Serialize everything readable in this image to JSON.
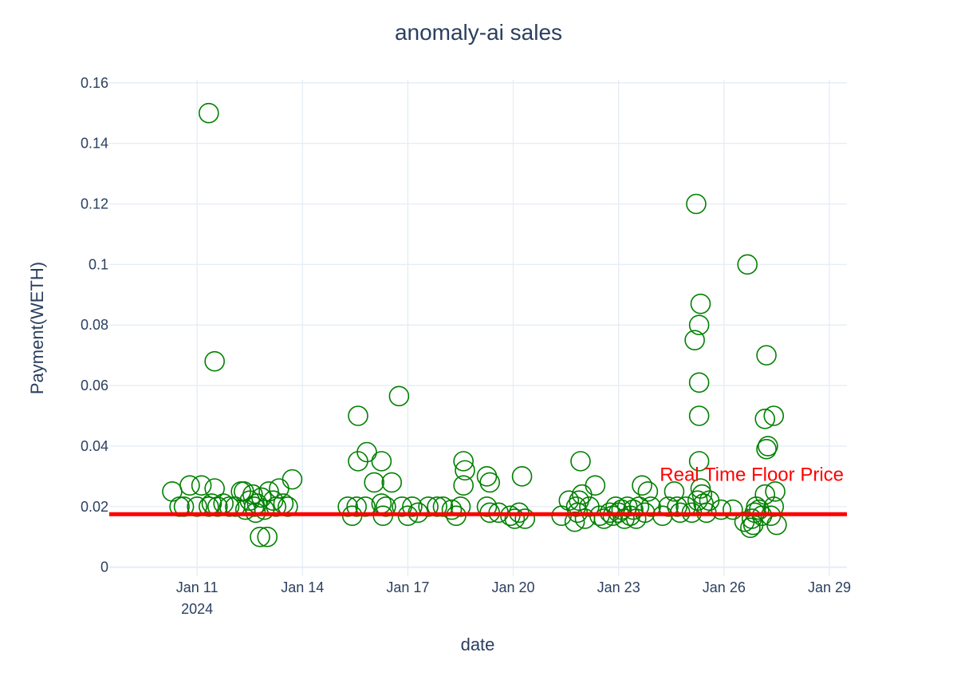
{
  "chart_data": {
    "type": "scatter",
    "title": "anomaly-ai sales",
    "xlabel": "date",
    "ylabel": "Payment(WETH)",
    "grid": true,
    "x_range": [
      "2024-01-08T12:00",
      "2024-01-29T12:00"
    ],
    "ylim": [
      -0.003,
      0.161
    ],
    "x_ticks": [
      {
        "date": "2024-01-11",
        "label": "Jan 11",
        "sublabel": "2024"
      },
      {
        "date": "2024-01-14",
        "label": "Jan 14"
      },
      {
        "date": "2024-01-17",
        "label": "Jan 17"
      },
      {
        "date": "2024-01-20",
        "label": "Jan 20"
      },
      {
        "date": "2024-01-23",
        "label": "Jan 23"
      },
      {
        "date": "2024-01-26",
        "label": "Jan 26"
      },
      {
        "date": "2024-01-29",
        "label": "Jan 29"
      }
    ],
    "y_ticks": [
      {
        "value": 0,
        "label": "0"
      },
      {
        "value": 0.02,
        "label": "0.02"
      },
      {
        "value": 0.04,
        "label": "0.04"
      },
      {
        "value": 0.06,
        "label": "0.06"
      },
      {
        "value": 0.08,
        "label": "0.08"
      },
      {
        "value": 0.1,
        "label": "0.1"
      },
      {
        "value": 0.12,
        "label": "0.12"
      },
      {
        "value": 0.14,
        "label": "0.14"
      },
      {
        "value": 0.16,
        "label": "0.16"
      }
    ],
    "marker_color": "#008000",
    "floor_price": {
      "value": 0.0175,
      "label": "Real Time Floor Price",
      "color": "#ff0000"
    },
    "series": [
      {
        "marker": "open-circle",
        "points": [
          {
            "x": "2024-01-10T07:00",
            "y": 0.025
          },
          {
            "x": "2024-01-10T12:00",
            "y": 0.02
          },
          {
            "x": "2024-01-10T15:00",
            "y": 0.02
          },
          {
            "x": "2024-01-10T19:00",
            "y": 0.027
          },
          {
            "x": "2024-01-11T00:00",
            "y": 0.02
          },
          {
            "x": "2024-01-11T03:00",
            "y": 0.027
          },
          {
            "x": "2024-01-11T08:00",
            "y": 0.02
          },
          {
            "x": "2024-01-11T08:00",
            "y": 0.15
          },
          {
            "x": "2024-01-11T10:00",
            "y": 0.021
          },
          {
            "x": "2024-01-11T12:00",
            "y": 0.068
          },
          {
            "x": "2024-01-11T12:00",
            "y": 0.026
          },
          {
            "x": "2024-01-11T14:00",
            "y": 0.02
          },
          {
            "x": "2024-01-11T18:00",
            "y": 0.021
          },
          {
            "x": "2024-01-11T22:00",
            "y": 0.02
          },
          {
            "x": "2024-01-12T02:00",
            "y": 0.02
          },
          {
            "x": "2024-01-12T06:00",
            "y": 0.025
          },
          {
            "x": "2024-01-12T08:00",
            "y": 0.025
          },
          {
            "x": "2024-01-12T09:00",
            "y": 0.019
          },
          {
            "x": "2024-01-12T12:00",
            "y": 0.022
          },
          {
            "x": "2024-01-12T14:00",
            "y": 0.024
          },
          {
            "x": "2024-01-12T15:00",
            "y": 0.02
          },
          {
            "x": "2024-01-12T16:00",
            "y": 0.018
          },
          {
            "x": "2024-01-12T17:00",
            "y": 0.021
          },
          {
            "x": "2024-01-12T19:00",
            "y": 0.01
          },
          {
            "x": "2024-01-12T20:00",
            "y": 0.023
          },
          {
            "x": "2024-01-12T22:00",
            "y": 0.019
          },
          {
            "x": "2024-01-13T00:00",
            "y": 0.01
          },
          {
            "x": "2024-01-13T01:00",
            "y": 0.025
          },
          {
            "x": "2024-01-13T04:00",
            "y": 0.022
          },
          {
            "x": "2024-01-13T06:00",
            "y": 0.02
          },
          {
            "x": "2024-01-13T08:00",
            "y": 0.026
          },
          {
            "x": "2024-01-13T11:00",
            "y": 0.021
          },
          {
            "x": "2024-01-13T14:00",
            "y": 0.02
          },
          {
            "x": "2024-01-13T17:00",
            "y": 0.029
          },
          {
            "x": "2024-01-15T07:00",
            "y": 0.02
          },
          {
            "x": "2024-01-15T10:00",
            "y": 0.017
          },
          {
            "x": "2024-01-15T13:00",
            "y": 0.02
          },
          {
            "x": "2024-01-15T14:00",
            "y": 0.035
          },
          {
            "x": "2024-01-15T14:00",
            "y": 0.05
          },
          {
            "x": "2024-01-15T19:00",
            "y": 0.02
          },
          {
            "x": "2024-01-15T20:00",
            "y": 0.038
          },
          {
            "x": "2024-01-16T01:00",
            "y": 0.028
          },
          {
            "x": "2024-01-16T06:00",
            "y": 0.021
          },
          {
            "x": "2024-01-16T06:00",
            "y": 0.035
          },
          {
            "x": "2024-01-16T07:00",
            "y": 0.017
          },
          {
            "x": "2024-01-16T09:00",
            "y": 0.02
          },
          {
            "x": "2024-01-16T13:00",
            "y": 0.028
          },
          {
            "x": "2024-01-16T18:00",
            "y": 0.0565
          },
          {
            "x": "2024-01-16T20:00",
            "y": 0.02
          },
          {
            "x": "2024-01-17T00:00",
            "y": 0.017
          },
          {
            "x": "2024-01-17T03:00",
            "y": 0.02
          },
          {
            "x": "2024-01-17T07:00",
            "y": 0.018
          },
          {
            "x": "2024-01-17T14:00",
            "y": 0.02
          },
          {
            "x": "2024-01-17T20:00",
            "y": 0.02
          },
          {
            "x": "2024-01-18T00:00",
            "y": 0.02
          },
          {
            "x": "2024-01-18T06:00",
            "y": 0.019
          },
          {
            "x": "2024-01-18T09:00",
            "y": 0.017
          },
          {
            "x": "2024-01-18T12:00",
            "y": 0.02
          },
          {
            "x": "2024-01-18T14:00",
            "y": 0.027
          },
          {
            "x": "2024-01-18T14:00",
            "y": 0.035
          },
          {
            "x": "2024-01-18T15:00",
            "y": 0.032
          },
          {
            "x": "2024-01-19T06:00",
            "y": 0.02
          },
          {
            "x": "2024-01-19T06:00",
            "y": 0.03
          },
          {
            "x": "2024-01-19T08:00",
            "y": 0.028
          },
          {
            "x": "2024-01-19T08:00",
            "y": 0.018
          },
          {
            "x": "2024-01-19T14:00",
            "y": 0.018
          },
          {
            "x": "2024-01-19T22:00",
            "y": 0.017
          },
          {
            "x": "2024-01-20T01:00",
            "y": 0.016
          },
          {
            "x": "2024-01-20T04:00",
            "y": 0.018
          },
          {
            "x": "2024-01-20T06:00",
            "y": 0.03
          },
          {
            "x": "2024-01-20T08:00",
            "y": 0.016
          },
          {
            "x": "2024-01-21T09:00",
            "y": 0.017
          },
          {
            "x": "2024-01-21T14:00",
            "y": 0.022
          },
          {
            "x": "2024-01-21T18:00",
            "y": 0.015
          },
          {
            "x": "2024-01-21T19:00",
            "y": 0.02
          },
          {
            "x": "2024-01-21T20:00",
            "y": 0.018
          },
          {
            "x": "2024-01-21T21:00",
            "y": 0.022
          },
          {
            "x": "2024-01-21T22:00",
            "y": 0.035
          },
          {
            "x": "2024-01-21T23:00",
            "y": 0.024
          },
          {
            "x": "2024-01-22T01:00",
            "y": 0.016
          },
          {
            "x": "2024-01-22T04:00",
            "y": 0.02
          },
          {
            "x": "2024-01-22T08:00",
            "y": 0.027
          },
          {
            "x": "2024-01-22T11:00",
            "y": 0.017
          },
          {
            "x": "2024-01-22T14:00",
            "y": 0.016
          },
          {
            "x": "2024-01-22T18:00",
            "y": 0.018
          },
          {
            "x": "2024-01-22T20:00",
            "y": 0.017
          },
          {
            "x": "2024-01-22T22:00",
            "y": 0.02
          },
          {
            "x": "2024-01-23T00:00",
            "y": 0.018
          },
          {
            "x": "2024-01-23T02:00",
            "y": 0.019
          },
          {
            "x": "2024-01-23T04:00",
            "y": 0.016
          },
          {
            "x": "2024-01-23T06:00",
            "y": 0.02
          },
          {
            "x": "2024-01-23T08:00",
            "y": 0.017
          },
          {
            "x": "2024-01-23T10:00",
            "y": 0.019
          },
          {
            "x": "2024-01-23T12:00",
            "y": 0.016
          },
          {
            "x": "2024-01-23T14:00",
            "y": 0.02
          },
          {
            "x": "2024-01-23T16:00",
            "y": 0.027
          },
          {
            "x": "2024-01-23T18:00",
            "y": 0.018
          },
          {
            "x": "2024-01-23T20:00",
            "y": 0.025
          },
          {
            "x": "2024-01-23T22:00",
            "y": 0.02
          },
          {
            "x": "2024-01-24T06:00",
            "y": 0.017
          },
          {
            "x": "2024-01-24T10:00",
            "y": 0.02
          },
          {
            "x": "2024-01-24T14:00",
            "y": 0.025
          },
          {
            "x": "2024-01-24T16:00",
            "y": 0.02
          },
          {
            "x": "2024-01-24T18:00",
            "y": 0.018
          },
          {
            "x": "2024-01-24T22:00",
            "y": 0.02
          },
          {
            "x": "2024-01-25T02:00",
            "y": 0.018
          },
          {
            "x": "2024-01-25T04:00",
            "y": 0.075
          },
          {
            "x": "2024-01-25T05:00",
            "y": 0.12
          },
          {
            "x": "2024-01-25T06:00",
            "y": 0.022
          },
          {
            "x": "2024-01-25T07:00",
            "y": 0.035
          },
          {
            "x": "2024-01-25T07:00",
            "y": 0.061
          },
          {
            "x": "2024-01-25T07:00",
            "y": 0.05
          },
          {
            "x": "2024-01-25T07:00",
            "y": 0.08
          },
          {
            "x": "2024-01-25T08:00",
            "y": 0.087
          },
          {
            "x": "2024-01-25T08:00",
            "y": 0.026
          },
          {
            "x": "2024-01-25T09:00",
            "y": 0.024
          },
          {
            "x": "2024-01-25T10:00",
            "y": 0.021
          },
          {
            "x": "2024-01-25T12:00",
            "y": 0.018
          },
          {
            "x": "2024-01-25T14:00",
            "y": 0.022
          },
          {
            "x": "2024-01-25T22:00",
            "y": 0.019
          },
          {
            "x": "2024-01-26T06:00",
            "y": 0.019
          },
          {
            "x": "2024-01-26T14:00",
            "y": 0.015
          },
          {
            "x": "2024-01-26T16:00",
            "y": 0.1
          },
          {
            "x": "2024-01-26T18:00",
            "y": 0.013
          },
          {
            "x": "2024-01-26T19:00",
            "y": 0.016
          },
          {
            "x": "2024-01-26T20:00",
            "y": 0.014
          },
          {
            "x": "2024-01-26T21:00",
            "y": 0.018
          },
          {
            "x": "2024-01-26T22:00",
            "y": 0.02
          },
          {
            "x": "2024-01-27T00:00",
            "y": 0.019
          },
          {
            "x": "2024-01-27T02:00",
            "y": 0.017
          },
          {
            "x": "2024-01-27T04:00",
            "y": 0.024
          },
          {
            "x": "2024-01-27T04:00",
            "y": 0.049
          },
          {
            "x": "2024-01-27T05:00",
            "y": 0.039
          },
          {
            "x": "2024-01-27T05:00",
            "y": 0.07
          },
          {
            "x": "2024-01-27T06:00",
            "y": 0.04
          },
          {
            "x": "2024-01-27T08:00",
            "y": 0.017
          },
          {
            "x": "2024-01-27T10:00",
            "y": 0.05
          },
          {
            "x": "2024-01-27T10:00",
            "y": 0.02
          },
          {
            "x": "2024-01-27T11:00",
            "y": 0.025
          },
          {
            "x": "2024-01-27T12:00",
            "y": 0.014
          }
        ]
      }
    ]
  }
}
